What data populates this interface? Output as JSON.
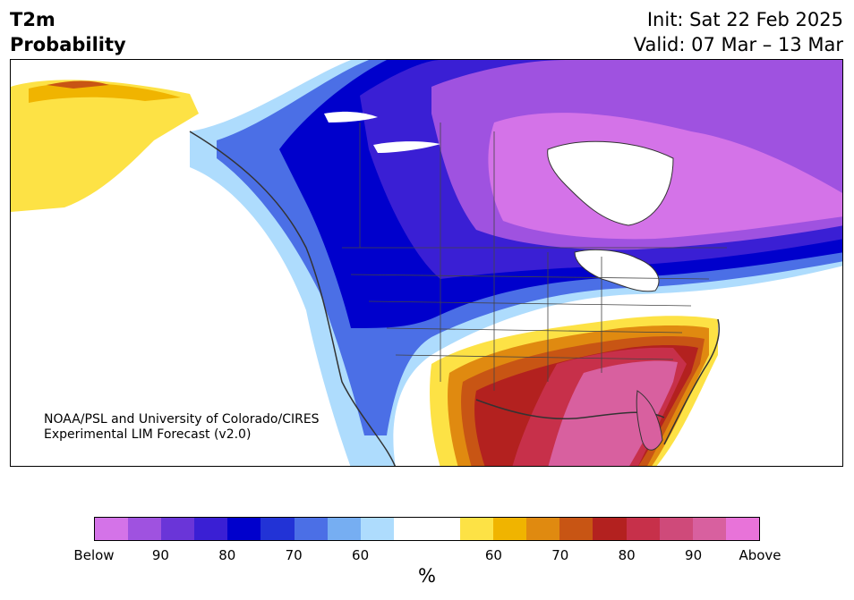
{
  "title": {
    "line1": "T2m",
    "line2": "Probability"
  },
  "meta": {
    "init": "Init: Sat 22 Feb 2025",
    "valid": "Valid: 07 Mar – 13 Mar"
  },
  "credit": {
    "line1": "NOAA/PSL and University of Colorado/CIRES",
    "line2": "Experimental LIM Forecast (v2.0)"
  },
  "colorbar": {
    "unit": "%",
    "colors": [
      "#d473e8",
      "#9f52e0",
      "#6a35d8",
      "#3a1fd4",
      "#0000cc",
      "#2233d6",
      "#4b6fe6",
      "#76aef2",
      "#aedcfd",
      "#ffffff",
      "#ffffff",
      "#fde245",
      "#f0b400",
      "#e08a10",
      "#c85514",
      "#b3211f",
      "#c7304a",
      "#cf4a7a",
      "#d8609f",
      "#e873d9"
    ],
    "labels": [
      "Below",
      "90",
      "80",
      "70",
      "60",
      "60",
      "70",
      "80",
      "90",
      "Above"
    ]
  },
  "icons": [
    "coastline",
    "state-borders",
    "probability-contours"
  ]
}
